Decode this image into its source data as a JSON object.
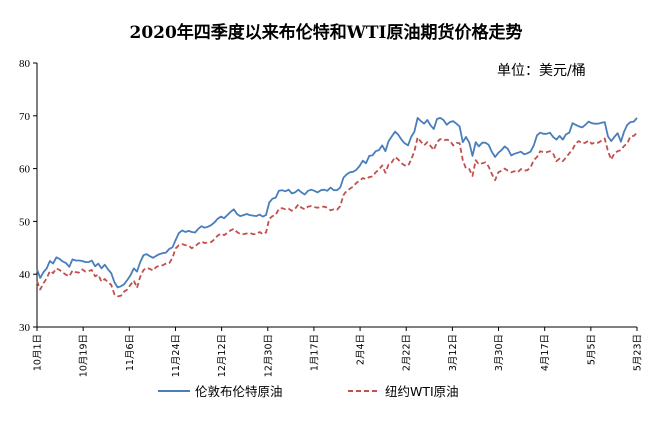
{
  "chart_data": {
    "type": "line",
    "title": "2020年四季度以来布伦特和WTI原油期货价格走势",
    "unit_label": "单位：美元/桶",
    "ylim": [
      30,
      80
    ],
    "yticks": [
      30,
      40,
      50,
      60,
      70,
      80
    ],
    "x_ticks": [
      "10月1日",
      "10月19日",
      "11月6日",
      "11月24日",
      "12月12日",
      "12月30日",
      "1月17日",
      "2月4日",
      "2月22日",
      "3月12日",
      "3月30日",
      "4月17日",
      "5月5日",
      "5月23日"
    ],
    "grid": false,
    "legend_position": "bottom",
    "colors": {
      "brent": "#4a7ebb",
      "wti": "#c0504d"
    },
    "series": [
      {
        "name": "伦敦布伦特原油",
        "values": [
          40.9,
          39.3,
          40.4,
          41.1,
          42.5,
          42.0,
          43.2,
          42.9,
          42.4,
          42.1,
          41.4,
          42.8,
          42.6,
          42.6,
          42.5,
          42.3,
          42.3,
          42.6,
          41.5,
          42.0,
          41.1,
          41.8,
          40.9,
          40.2,
          38.5,
          37.5,
          37.7,
          38.1,
          38.9,
          39.8,
          41.1,
          40.5,
          42.3,
          43.6,
          43.8,
          43.4,
          43.1,
          43.5,
          43.8,
          44.0,
          44.1,
          44.8,
          45.1,
          46.5,
          47.8,
          48.3,
          48.0,
          48.2,
          48.0,
          47.9,
          48.6,
          49.1,
          48.8,
          49.0,
          49.3,
          49.8,
          50.5,
          50.9,
          50.6,
          51.2,
          51.8,
          52.3,
          51.4,
          51.0,
          51.2,
          51.4,
          51.2,
          51.1,
          51.0,
          51.3,
          50.9,
          51.2,
          53.6,
          54.3,
          54.5,
          55.8,
          55.9,
          55.7,
          56.0,
          55.3,
          55.5,
          56.0,
          55.5,
          55.1,
          55.8,
          56.0,
          55.8,
          55.5,
          55.9,
          56.0,
          55.8,
          56.4,
          55.9,
          55.9,
          56.4,
          58.3,
          58.9,
          59.3,
          59.4,
          59.8,
          60.5,
          61.5,
          61.0,
          62.4,
          62.5,
          63.3,
          63.5,
          64.4,
          63.3,
          65.2,
          66.1,
          67.0,
          66.4,
          65.5,
          64.8,
          64.4,
          66.0,
          67.0,
          69.6,
          69.0,
          68.5,
          69.2,
          68.2,
          67.5,
          69.4,
          69.6,
          69.2,
          68.3,
          68.8,
          69.0,
          68.5,
          68.0,
          65.0,
          66.0,
          64.9,
          62.4,
          65.0,
          64.2,
          64.9,
          64.9,
          64.5,
          63.2,
          62.2,
          63.0,
          63.5,
          64.2,
          63.7,
          62.5,
          62.8,
          63.0,
          63.2,
          62.7,
          62.9,
          63.2,
          64.4,
          66.3,
          66.8,
          66.6,
          66.6,
          66.8,
          66.0,
          65.5,
          66.2,
          65.5,
          66.5,
          66.8,
          68.6,
          68.3,
          68.0,
          67.8,
          68.3,
          68.9,
          68.6,
          68.5,
          68.5,
          68.7,
          68.8,
          66.1,
          65.2,
          66.0,
          66.7,
          65.1,
          67.0,
          68.3,
          68.8,
          68.9,
          69.6
        ]
      },
      {
        "name": "纽约WTI原油",
        "values": [
          38.7,
          37.1,
          38.3,
          39.2,
          40.6,
          40.2,
          41.1,
          40.8,
          40.3,
          39.9,
          39.6,
          40.7,
          40.4,
          40.3,
          40.9,
          40.5,
          40.6,
          40.8,
          39.6,
          39.9,
          38.6,
          39.1,
          38.5,
          38.0,
          36.2,
          35.8,
          35.9,
          36.7,
          37.1,
          38.0,
          38.8,
          37.4,
          39.5,
          40.8,
          41.2,
          41.0,
          40.7,
          41.4,
          41.6,
          41.7,
          42.0,
          42.1,
          43.1,
          44.9,
          45.5,
          45.7,
          45.5,
          45.4,
          44.9,
          45.3,
          45.8,
          46.2,
          45.9,
          46.0,
          46.1,
          46.6,
          47.3,
          47.7,
          47.4,
          47.8,
          48.3,
          48.6,
          48.0,
          47.6,
          47.6,
          47.7,
          47.8,
          47.6,
          47.6,
          48.0,
          47.6,
          47.9,
          50.5,
          51.0,
          51.2,
          52.4,
          52.5,
          52.3,
          52.4,
          52.0,
          52.4,
          53.2,
          52.6,
          52.3,
          52.8,
          52.9,
          52.7,
          52.6,
          52.7,
          52.8,
          52.6,
          52.1,
          52.3,
          52.2,
          52.9,
          55.0,
          55.8,
          56.2,
          56.6,
          57.3,
          57.7,
          58.2,
          58.0,
          58.4,
          58.5,
          59.3,
          59.8,
          60.6,
          59.2,
          60.8,
          61.2,
          62.2,
          61.7,
          61.0,
          60.6,
          60.5,
          61.7,
          63.3,
          65.9,
          65.1,
          64.4,
          65.0,
          64.3,
          63.5,
          65.0,
          65.6,
          65.3,
          65.5,
          65.3,
          64.4,
          64.9,
          64.8,
          61.6,
          60.0,
          59.9,
          58.6,
          61.6,
          60.8,
          61.0,
          61.2,
          60.4,
          59.0,
          57.8,
          59.3,
          59.6,
          60.0,
          59.6,
          59.3,
          59.5,
          59.3,
          59.9,
          59.6,
          59.7,
          60.2,
          61.6,
          62.2,
          63.3,
          63.1,
          63.1,
          63.3,
          62.9,
          61.4,
          61.9,
          61.4,
          62.1,
          62.9,
          63.6,
          64.8,
          65.2,
          64.8,
          64.9,
          65.3,
          64.7,
          65.0,
          64.9,
          65.3,
          65.7,
          63.3,
          61.7,
          62.9,
          63.3,
          63.5,
          64.3,
          64.8,
          66.1,
          66.2,
          66.8
        ]
      }
    ]
  }
}
